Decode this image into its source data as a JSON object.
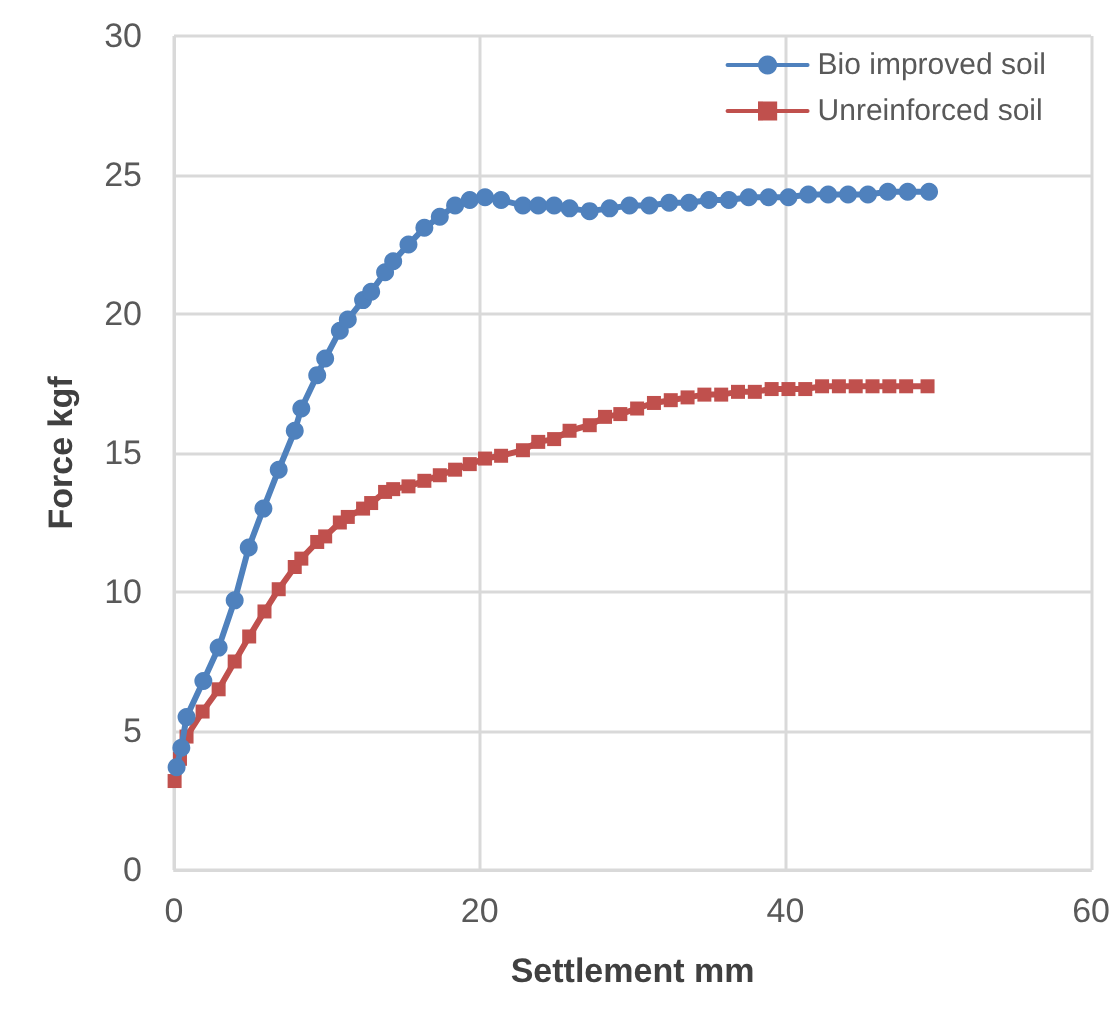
{
  "chart_data": {
    "type": "line",
    "xlabel": "Settlement mm",
    "ylabel": "Force kgf",
    "xlim": [
      0,
      60
    ],
    "xticks": [
      0,
      20,
      40,
      60
    ],
    "ylim": [
      0,
      30
    ],
    "yticks": [
      0,
      5,
      10,
      15,
      20,
      25,
      30
    ],
    "grid": true,
    "legend": "top right",
    "line_style": "solid",
    "series": [
      {
        "name": "Bio improved soil",
        "color": "#4f81bd",
        "marker": "circle",
        "x": [
          0.17,
          0.48,
          0.82,
          1.92,
          2.92,
          3.97,
          4.89,
          5.85,
          6.85,
          7.9,
          8.33,
          9.37,
          9.89,
          10.85,
          11.37,
          12.37,
          12.9,
          13.81,
          14.34,
          15.34,
          16.38,
          17.39,
          18.39,
          19.35,
          20.35,
          21.4,
          22.83,
          23.83,
          24.87,
          25.88,
          27.19,
          28.5,
          29.8,
          31.1,
          32.4,
          33.7,
          35,
          36.3,
          37.6,
          38.9,
          40.2,
          41.5,
          42.8,
          44.1,
          45.4,
          46.7,
          48,
          49.4
        ],
        "values": [
          3.7,
          4.4,
          5.5,
          6.8,
          8.0,
          9.7,
          11.6,
          13.0,
          14.4,
          15.8,
          16.6,
          17.8,
          18.4,
          19.4,
          19.8,
          20.5,
          20.8,
          21.5,
          21.9,
          22.5,
          23.1,
          23.5,
          23.9,
          24.1,
          24.2,
          24.1,
          23.9,
          23.9,
          23.9,
          23.8,
          23.7,
          23.8,
          23.9,
          23.9,
          24.0,
          24.0,
          24.1,
          24.1,
          24.2,
          24.2,
          24.2,
          24.3,
          24.3,
          24.3,
          24.3,
          24.4,
          24.4,
          24.4
        ]
      },
      {
        "name": "Unreinforced soil",
        "color": "#c0504d",
        "marker": "square",
        "x": [
          0.04,
          0.39,
          0.82,
          1.87,
          2.92,
          3.97,
          4.92,
          5.92,
          6.85,
          7.9,
          8.33,
          9.37,
          9.89,
          10.85,
          11.37,
          12.37,
          12.9,
          13.81,
          14.34,
          15.34,
          16.38,
          17.39,
          18.39,
          19.35,
          20.35,
          21.4,
          22.83,
          23.83,
          24.87,
          25.88,
          27.2,
          28.2,
          29.2,
          30.3,
          31.4,
          32.5,
          33.6,
          34.7,
          35.8,
          36.9,
          38,
          39.1,
          40.2,
          41.3,
          42.4,
          43.5,
          44.6,
          45.7,
          46.8,
          47.9,
          49.3
        ],
        "values": [
          3.2,
          4.0,
          4.8,
          5.7,
          6.5,
          7.5,
          8.4,
          9.3,
          10.1,
          10.9,
          11.2,
          11.8,
          12.0,
          12.5,
          12.7,
          13.0,
          13.2,
          13.6,
          13.7,
          13.8,
          14.0,
          14.2,
          14.4,
          14.6,
          14.8,
          14.9,
          15.1,
          15.4,
          15.5,
          15.8,
          16.0,
          16.3,
          16.4,
          16.6,
          16.8,
          16.9,
          17.0,
          17.1,
          17.1,
          17.2,
          17.2,
          17.3,
          17.3,
          17.3,
          17.4,
          17.4,
          17.4,
          17.4,
          17.4,
          17.4,
          17.4
        ]
      }
    ]
  }
}
